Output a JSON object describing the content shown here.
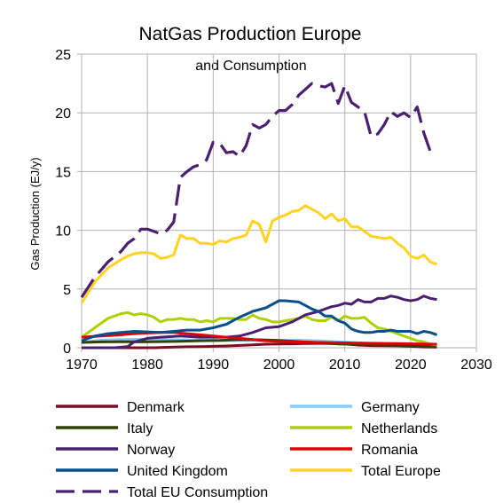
{
  "chart_data": {
    "type": "line",
    "title": "NatGas Production Europe",
    "subtitle": "and Consumption",
    "xlabel": "",
    "ylabel": "Gas Production (EJ/y)",
    "xlim": [
      1970,
      2030
    ],
    "ylim": [
      0,
      25
    ],
    "xticks": [
      "1970",
      "1980",
      "1990",
      "2000",
      "2010",
      "2020",
      "2030"
    ],
    "yticks": [
      "0",
      "5",
      "10",
      "15",
      "20",
      "25"
    ],
    "grid": true,
    "legend_position": "bottom",
    "series": [
      {
        "name": "Denmark",
        "color": "#7b0f21",
        "dash": false,
        "x": [
          1970,
          1972,
          1975,
          1978,
          1981,
          1984,
          1986,
          1988,
          1990,
          1992,
          1994,
          1996,
          1998,
          2000,
          2002,
          2004,
          2006,
          2008,
          2010,
          2012,
          2014,
          2016,
          2018,
          2020,
          2022,
          2024
        ],
        "y": [
          0,
          0,
          0,
          0,
          0,
          0.05,
          0.08,
          0.1,
          0.12,
          0.15,
          0.2,
          0.25,
          0.3,
          0.32,
          0.33,
          0.36,
          0.37,
          0.36,
          0.32,
          0.23,
          0.18,
          0.17,
          0.16,
          0.12,
          0.07,
          0.05
        ]
      },
      {
        "name": "Germany",
        "color": "#83caff",
        "dash": false,
        "x": [
          1970,
          1973,
          1976,
          1979,
          1982,
          1985,
          1988,
          1991,
          1994,
          1997,
          2000,
          2003,
          2006,
          2009,
          2012,
          2015,
          2018,
          2021,
          2024
        ],
        "y": [
          0.45,
          0.65,
          0.7,
          0.72,
          0.7,
          0.68,
          0.65,
          0.63,
          0.62,
          0.63,
          0.63,
          0.64,
          0.6,
          0.5,
          0.42,
          0.33,
          0.23,
          0.17,
          0.15
        ]
      },
      {
        "name": "Italy",
        "color": "#314004",
        "dash": false,
        "x": [
          1970,
          1973,
          1976,
          1979,
          1982,
          1985,
          1988,
          1991,
          1994,
          1997,
          2000,
          2003,
          2006,
          2009,
          2012,
          2015,
          2018,
          2021,
          2024
        ],
        "y": [
          0.45,
          0.5,
          0.52,
          0.5,
          0.52,
          0.55,
          0.6,
          0.62,
          0.7,
          0.68,
          0.62,
          0.52,
          0.43,
          0.32,
          0.32,
          0.25,
          0.2,
          0.12,
          0.1
        ]
      },
      {
        "name": "Netherlands",
        "color": "#aecf00",
        "dash": false,
        "x": [
          1970,
          1972,
          1974,
          1976,
          1977,
          1978,
          1979,
          1980,
          1981,
          1982,
          1983,
          1984,
          1985,
          1986,
          1987,
          1988,
          1989,
          1990,
          1991,
          1992,
          1993,
          1994,
          1995,
          1996,
          1997,
          1998,
          1999,
          2000,
          2001,
          2002,
          2003,
          2004,
          2005,
          2006,
          2007,
          2008,
          2009,
          2010,
          2011,
          2012,
          2013,
          2014,
          2015,
          2016,
          2017,
          2018,
          2019,
          2020,
          2021,
          2022,
          2023,
          2024
        ],
        "y": [
          0.9,
          1.7,
          2.5,
          2.9,
          3.0,
          2.8,
          2.9,
          2.8,
          2.6,
          2.2,
          2.4,
          2.4,
          2.5,
          2.4,
          2.4,
          2.2,
          2.3,
          2.2,
          2.5,
          2.5,
          2.5,
          2.4,
          2.4,
          2.8,
          2.5,
          2.4,
          2.2,
          2.2,
          2.3,
          2.4,
          2.5,
          2.7,
          2.4,
          2.3,
          2.3,
          2.6,
          2.3,
          2.7,
          2.5,
          2.5,
          2.6,
          2.1,
          1.7,
          1.6,
          1.4,
          1.2,
          1.0,
          0.8,
          0.6,
          0.5,
          0.3,
          0.25
        ]
      },
      {
        "name": "Norway",
        "color": "#4b1f6f",
        "dash": false,
        "x": [
          1970,
          1975,
          1977,
          1978,
          1980,
          1982,
          1985,
          1988,
          1990,
          1992,
          1994,
          1996,
          1998,
          2000,
          2002,
          2004,
          2006,
          2007,
          2008,
          2009,
          2010,
          2011,
          2012,
          2013,
          2014,
          2015,
          2016,
          2017,
          2018,
          2019,
          2020,
          2021,
          2022,
          2023,
          2024
        ],
        "y": [
          0,
          0,
          0.1,
          0.5,
          0.8,
          0.9,
          1.0,
          0.9,
          0.9,
          0.9,
          1.0,
          1.3,
          1.7,
          1.8,
          2.2,
          2.8,
          3.1,
          3.3,
          3.5,
          3.6,
          3.8,
          3.7,
          4.1,
          3.9,
          3.9,
          4.2,
          4.2,
          4.4,
          4.3,
          4.1,
          4.0,
          4.1,
          4.4,
          4.2,
          4.1
        ]
      },
      {
        "name": "Romania",
        "color": "#e00000",
        "dash": false,
        "x": [
          1970,
          1973,
          1976,
          1978,
          1980,
          1982,
          1984,
          1986,
          1988,
          1990,
          1992,
          1994,
          1996,
          1998,
          2000,
          2003,
          2006,
          2009,
          2012,
          2015,
          2018,
          2021,
          2024
        ],
        "y": [
          0.9,
          1.0,
          1.1,
          1.2,
          1.25,
          1.3,
          1.3,
          1.2,
          1.1,
          1.0,
          0.9,
          0.8,
          0.7,
          0.6,
          0.55,
          0.5,
          0.45,
          0.42,
          0.4,
          0.38,
          0.36,
          0.33,
          0.3
        ]
      },
      {
        "name": "United Kingdom",
        "color": "#084f8c",
        "dash": false,
        "x": [
          1970,
          1972,
          1974,
          1976,
          1978,
          1980,
          1982,
          1984,
          1986,
          1988,
          1990,
          1992,
          1994,
          1996,
          1998,
          2000,
          2001,
          2002,
          2003,
          2004,
          2005,
          2006,
          2007,
          2008,
          2009,
          2010,
          2011,
          2012,
          2013,
          2014,
          2015,
          2016,
          2017,
          2018,
          2019,
          2020,
          2021,
          2022,
          2023,
          2024
        ],
        "y": [
          0.6,
          1.0,
          1.2,
          1.3,
          1.4,
          1.35,
          1.3,
          1.4,
          1.5,
          1.5,
          1.7,
          2.0,
          2.6,
          3.1,
          3.4,
          4.0,
          4.0,
          3.95,
          3.9,
          3.6,
          3.3,
          3.1,
          2.7,
          2.7,
          2.3,
          2.1,
          1.6,
          1.4,
          1.3,
          1.3,
          1.4,
          1.4,
          1.5,
          1.4,
          1.4,
          1.4,
          1.2,
          1.4,
          1.3,
          1.1
        ]
      },
      {
        "name": "Total Europe",
        "color": "#ffd320",
        "dash": false,
        "x": [
          1970,
          1972,
          1974,
          1976,
          1977,
          1978,
          1979,
          1980,
          1981,
          1982,
          1983,
          1984,
          1985,
          1986,
          1987,
          1988,
          1989,
          1990,
          1991,
          1992,
          1993,
          1994,
          1995,
          1996,
          1997,
          1998,
          1999,
          2000,
          2001,
          2002,
          2003,
          2004,
          2005,
          2006,
          2007,
          2008,
          2009,
          2010,
          2011,
          2012,
          2013,
          2014,
          2015,
          2016,
          2017,
          2018,
          2019,
          2020,
          2021,
          2022,
          2023,
          2024
        ],
        "y": [
          3.8,
          5.6,
          6.8,
          7.5,
          7.8,
          8.0,
          8.1,
          8.1,
          8.0,
          7.6,
          7.7,
          7.9,
          9.6,
          9.3,
          9.3,
          8.9,
          8.9,
          8.8,
          9.1,
          9.0,
          9.3,
          9.4,
          9.6,
          10.8,
          10.5,
          9.0,
          10.8,
          11.1,
          11.3,
          11.6,
          11.7,
          12.1,
          11.8,
          11.5,
          11.0,
          11.4,
          10.8,
          11.0,
          10.3,
          10.3,
          9.9,
          9.5,
          9.4,
          9.3,
          9.4,
          8.9,
          8.5,
          7.8,
          7.6,
          7.9,
          7.3,
          7.1
        ]
      },
      {
        "name": "Total EU Consumption",
        "color": "#4b1f6f",
        "dash": true,
        "x": [
          1970,
          1972,
          1974,
          1976,
          1977,
          1978,
          1979,
          1980,
          1981,
          1982,
          1983,
          1984,
          1985,
          1986,
          1987,
          1988,
          1989,
          1990,
          1991,
          1992,
          1993,
          1994,
          1995,
          1996,
          1997,
          1998,
          1999,
          2000,
          2001,
          2002,
          2003,
          2004,
          2005,
          2006,
          2007,
          2008,
          2009,
          2010,
          2011,
          2012,
          2013,
          2014,
          2015,
          2016,
          2017,
          2018,
          2019,
          2020,
          2021,
          2022,
          2023,
          2024
        ],
        "y": [
          4.3,
          6.0,
          7.3,
          8.2,
          8.9,
          9.3,
          10.1,
          10.1,
          9.9,
          9.7,
          10.0,
          10.7,
          14.5,
          15.0,
          15.4,
          15.6,
          16.0,
          17.5,
          17.4,
          16.6,
          16.7,
          16.3,
          17.2,
          19.0,
          18.7,
          19.0,
          19.7,
          20.2,
          20.2,
          20.7,
          21.5,
          22.0,
          22.5,
          22.3,
          22.2,
          22.5,
          20.8,
          22.3,
          20.9,
          20.5,
          20.1,
          18.0,
          18.2,
          19.0,
          20.1,
          19.7,
          20.0,
          19.6,
          20.5,
          18.3,
          16.7,
          16.8
        ]
      }
    ]
  }
}
